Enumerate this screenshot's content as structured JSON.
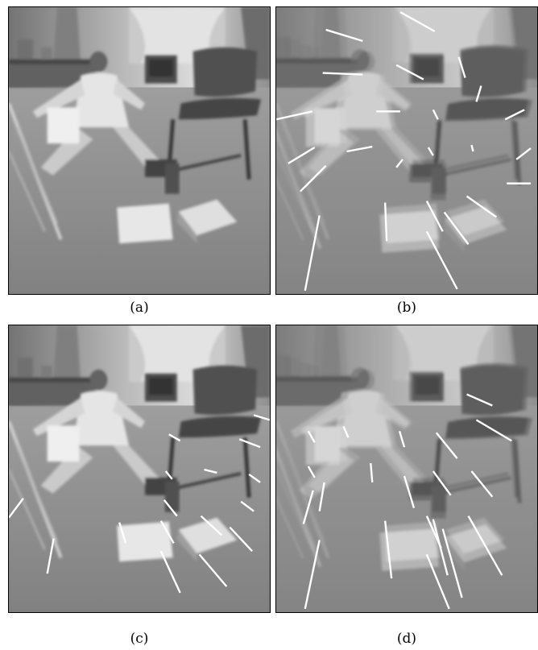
{
  "figure": {
    "panels": [
      {
        "id": "a",
        "label": "(a)",
        "has_segments": false,
        "ghost": false
      },
      {
        "id": "b",
        "label": "(b)",
        "has_segments": true,
        "ghost": true
      },
      {
        "id": "c",
        "label": "(c)",
        "has_segments": true,
        "ghost": false
      },
      {
        "id": "d",
        "label": "(d)",
        "has_segments": true,
        "ghost": true
      }
    ]
  },
  "colors": {
    "segment": "#ffffff",
    "border": "#000000"
  }
}
